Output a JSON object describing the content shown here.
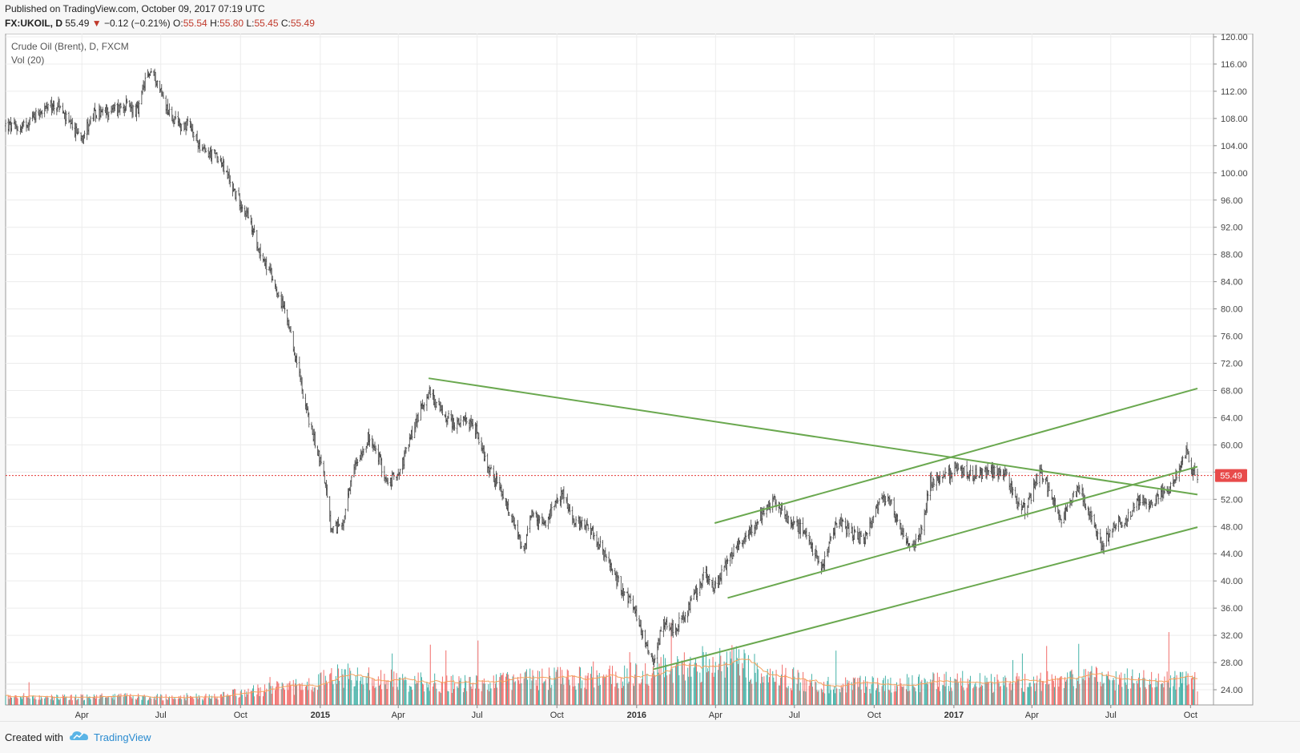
{
  "header": {
    "published": "Published on TradingView.com, October 09, 2017 07:19 UTC",
    "symbol": "FX:UKOIL, D",
    "last": "55.49",
    "change_arrow": "▼",
    "change": "−0.12 (−0.21%)",
    "o_label": "O:",
    "o": "55.54",
    "h_label": "H:",
    "h": "55.80",
    "l_label": "L:",
    "l": "55.45",
    "c_label": "C:",
    "c": "55.49"
  },
  "legend": {
    "title": "Crude Oil (Brent), D, FXCM",
    "indicator": "Vol (20)"
  },
  "footer": {
    "created": "Created with",
    "brand": "TradingView"
  },
  "colors": {
    "up": "#26a69a",
    "down": "#ef5350",
    "trendline": "#6aa84f",
    "price_line": "#e53935",
    "vol_ma": "#f5a25d",
    "price_label_bg": "#e84b4b"
  },
  "chart_data": {
    "type": "candlestick",
    "title": "Crude Oil (Brent), D, FXCM",
    "symbol": "FX:UKOIL",
    "timeframe": "D",
    "x_range": [
      "2014-01-03",
      "2017-10-09"
    ],
    "ylim": [
      22,
      120
    ],
    "y_ticks": [
      "24.00",
      "28.00",
      "32.00",
      "36.00",
      "40.00",
      "44.00",
      "48.00",
      "52.00",
      "56.00",
      "60.00",
      "64.00",
      "68.00",
      "72.00",
      "76.00",
      "80.00",
      "84.00",
      "88.00",
      "92.00",
      "96.00",
      "100.00",
      "104.00",
      "108.00",
      "112.00",
      "116.00",
      "120.00"
    ],
    "x_ticks": [
      {
        "label": "Apr",
        "date": "2014-04-01",
        "bold": false
      },
      {
        "label": "Jul",
        "date": "2014-07-01",
        "bold": false
      },
      {
        "label": "Oct",
        "date": "2014-10-01",
        "bold": false
      },
      {
        "label": "2015",
        "date": "2015-01-01",
        "bold": true
      },
      {
        "label": "Apr",
        "date": "2015-04-01",
        "bold": false
      },
      {
        "label": "Jul",
        "date": "2015-07-01",
        "bold": false
      },
      {
        "label": "Oct",
        "date": "2015-10-01",
        "bold": false
      },
      {
        "label": "2016",
        "date": "2016-01-01",
        "bold": true
      },
      {
        "label": "Apr",
        "date": "2016-04-01",
        "bold": false
      },
      {
        "label": "Jul",
        "date": "2016-07-01",
        "bold": false
      },
      {
        "label": "Oct",
        "date": "2016-10-01",
        "bold": false
      },
      {
        "label": "2017",
        "date": "2017-01-01",
        "bold": true
      },
      {
        "label": "Apr",
        "date": "2017-04-01",
        "bold": false
      },
      {
        "label": "Jul",
        "date": "2017-07-01",
        "bold": false
      },
      {
        "label": "Oct",
        "date": "2017-10-01",
        "bold": false
      }
    ],
    "price_path": [
      [
        "2014-01-03",
        107
      ],
      [
        "2014-01-20",
        106.5
      ],
      [
        "2014-02-10",
        109
      ],
      [
        "2014-03-05",
        110
      ],
      [
        "2014-03-20",
        106.5
      ],
      [
        "2014-04-01",
        105.5
      ],
      [
        "2014-04-15",
        108.5
      ],
      [
        "2014-05-01",
        109
      ],
      [
        "2014-05-20",
        110
      ],
      [
        "2014-06-05",
        109
      ],
      [
        "2014-06-12",
        113
      ],
      [
        "2014-06-19",
        115
      ],
      [
        "2014-06-25",
        114
      ],
      [
        "2014-07-10",
        109
      ],
      [
        "2014-07-20",
        107
      ],
      [
        "2014-08-01",
        107
      ],
      [
        "2014-08-20",
        103
      ],
      [
        "2014-09-05",
        102.5
      ],
      [
        "2014-09-25",
        97
      ],
      [
        "2014-10-08",
        94
      ],
      [
        "2014-10-25",
        88
      ],
      [
        "2014-11-05",
        85
      ],
      [
        "2014-11-20",
        80
      ],
      [
        "2014-12-05",
        72
      ],
      [
        "2014-12-20",
        63
      ],
      [
        "2015-01-05",
        56
      ],
      [
        "2015-01-14",
        47
      ],
      [
        "2015-01-28",
        49
      ],
      [
        "2015-02-10",
        57
      ],
      [
        "2015-02-25",
        61
      ],
      [
        "2015-03-10",
        58
      ],
      [
        "2015-03-20",
        54
      ],
      [
        "2015-04-05",
        57
      ],
      [
        "2015-04-20",
        63
      ],
      [
        "2015-05-06",
        68
      ],
      [
        "2015-05-20",
        65
      ],
      [
        "2015-06-05",
        63
      ],
      [
        "2015-06-20",
        63.5
      ],
      [
        "2015-07-01",
        62
      ],
      [
        "2015-07-10",
        58
      ],
      [
        "2015-07-25",
        54
      ],
      [
        "2015-08-10",
        49
      ],
      [
        "2015-08-24",
        44
      ],
      [
        "2015-09-01",
        50
      ],
      [
        "2015-09-15",
        48
      ],
      [
        "2015-10-08",
        53
      ],
      [
        "2015-10-20",
        48.5
      ],
      [
        "2015-11-05",
        48.5
      ],
      [
        "2015-11-20",
        45
      ],
      [
        "2015-12-10",
        40
      ],
      [
        "2015-12-25",
        37
      ],
      [
        "2016-01-12",
        31
      ],
      [
        "2016-01-20",
        28
      ],
      [
        "2016-02-01",
        34
      ],
      [
        "2016-02-15",
        33
      ],
      [
        "2016-03-01",
        36
      ],
      [
        "2016-03-20",
        41
      ],
      [
        "2016-04-01",
        39
      ],
      [
        "2016-04-15",
        43
      ],
      [
        "2016-05-01",
        46
      ],
      [
        "2016-05-20",
        49
      ],
      [
        "2016-06-08",
        52
      ],
      [
        "2016-06-25",
        49
      ],
      [
        "2016-07-10",
        47.5
      ],
      [
        "2016-07-25",
        44
      ],
      [
        "2016-08-02",
        42
      ],
      [
        "2016-08-20",
        49
      ],
      [
        "2016-09-05",
        47
      ],
      [
        "2016-09-20",
        46
      ],
      [
        "2016-10-08",
        52.5
      ],
      [
        "2016-10-20",
        51.5
      ],
      [
        "2016-11-01",
        47.5
      ],
      [
        "2016-11-14",
        44.5
      ],
      [
        "2016-11-25",
        48
      ],
      [
        "2016-12-05",
        54.5
      ],
      [
        "2016-12-20",
        55
      ],
      [
        "2017-01-05",
        57
      ],
      [
        "2017-01-20",
        55.5
      ],
      [
        "2017-02-10",
        56
      ],
      [
        "2017-03-01",
        56
      ],
      [
        "2017-03-15",
        51.5
      ],
      [
        "2017-03-25",
        50.5
      ],
      [
        "2017-04-11",
        56.5
      ],
      [
        "2017-04-25",
        52
      ],
      [
        "2017-05-05",
        48.5
      ],
      [
        "2017-05-25",
        54
      ],
      [
        "2017-06-10",
        48.5
      ],
      [
        "2017-06-21",
        44.8
      ],
      [
        "2017-07-05",
        48.5
      ],
      [
        "2017-07-20",
        49
      ],
      [
        "2017-08-01",
        52
      ],
      [
        "2017-08-15",
        51
      ],
      [
        "2017-08-25",
        52.5
      ],
      [
        "2017-09-10",
        54
      ],
      [
        "2017-09-26",
        59
      ],
      [
        "2017-10-02",
        56.5
      ],
      [
        "2017-10-09",
        55.5
      ]
    ],
    "current_price": 55.49,
    "trendlines": [
      {
        "from": [
          "2015-05-06",
          69.8
        ],
        "to": [
          "2017-10-09",
          52.7
        ]
      },
      {
        "from": [
          "2016-03-31",
          48.5
        ],
        "to": [
          "2017-10-09",
          68.3
        ]
      },
      {
        "from": [
          "2016-04-15",
          37.5
        ],
        "to": [
          "2017-10-09",
          56.8
        ]
      },
      {
        "from": [
          "2016-01-20",
          27.0
        ],
        "to": [
          "2017-10-09",
          47.9
        ]
      }
    ],
    "volume": {
      "indicator": "Vol (20)",
      "ma_period": 20,
      "level_path": [
        [
          "2014-01-03",
          0.12
        ],
        [
          "2014-09-01",
          0.12
        ],
        [
          "2014-10-20",
          0.22
        ],
        [
          "2014-12-20",
          0.28
        ],
        [
          "2015-01-20",
          0.45
        ],
        [
          "2015-03-01",
          0.38
        ],
        [
          "2015-05-15",
          0.32
        ],
        [
          "2015-07-10",
          0.3
        ],
        [
          "2015-09-01",
          0.38
        ],
        [
          "2015-11-01",
          0.4
        ],
        [
          "2015-12-15",
          0.42
        ],
        [
          "2016-01-20",
          0.48
        ],
        [
          "2016-02-15",
          0.55
        ],
        [
          "2016-04-01",
          0.62
        ],
        [
          "2016-05-01",
          0.6
        ],
        [
          "2016-06-15",
          0.42
        ],
        [
          "2016-08-01",
          0.3
        ],
        [
          "2016-10-01",
          0.3
        ],
        [
          "2016-12-15",
          0.35
        ],
        [
          "2017-02-15",
          0.32
        ],
        [
          "2017-04-01",
          0.34
        ],
        [
          "2017-06-01",
          0.4
        ],
        [
          "2017-08-15",
          0.36
        ],
        [
          "2017-10-09",
          0.34
        ]
      ]
    }
  }
}
